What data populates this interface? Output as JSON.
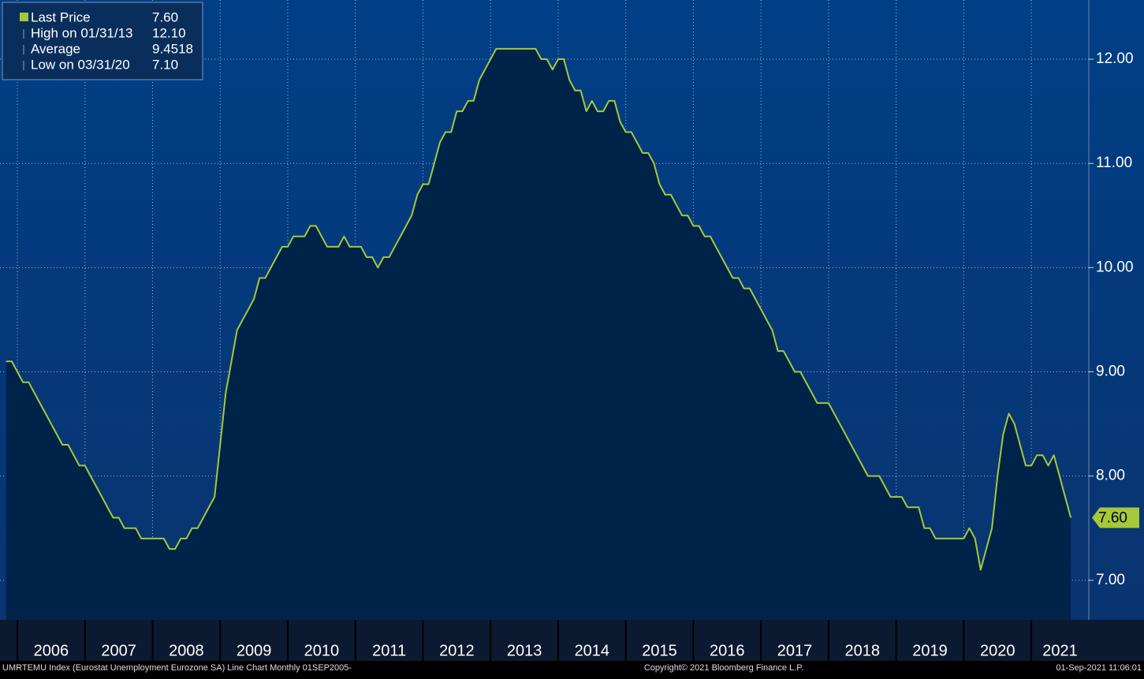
{
  "chart_data": {
    "type": "line",
    "footer_left": "UMRTEMU Index (Eurostat Unemployment Eurozone SA) Line Chart  Monthly 01SEP2005-",
    "footer_center": "Copyright© 2021 Bloomberg Finance L.P.",
    "footer_right": "01-Sep-2021 11:06:01",
    "series": [
      {
        "name": "Last Price",
        "color": "#a6c83a",
        "fill": "#00234a",
        "values": [
          9.1,
          9.1,
          9.0,
          8.9,
          8.9,
          8.8,
          8.7,
          8.6,
          8.5,
          8.4,
          8.3,
          8.3,
          8.2,
          8.1,
          8.1,
          8.0,
          7.9,
          7.8,
          7.7,
          7.6,
          7.6,
          7.5,
          7.5,
          7.5,
          7.4,
          7.4,
          7.4,
          7.4,
          7.4,
          7.3,
          7.3,
          7.4,
          7.4,
          7.5,
          7.5,
          7.6,
          7.7,
          7.8,
          8.3,
          8.8,
          9.1,
          9.4,
          9.5,
          9.6,
          9.7,
          9.9,
          9.9,
          10.0,
          10.1,
          10.2,
          10.2,
          10.3,
          10.3,
          10.3,
          10.4,
          10.4,
          10.3,
          10.2,
          10.2,
          10.2,
          10.3,
          10.2,
          10.2,
          10.2,
          10.1,
          10.1,
          10.0,
          10.1,
          10.1,
          10.2,
          10.3,
          10.4,
          10.5,
          10.7,
          10.8,
          10.8,
          11.0,
          11.2,
          11.3,
          11.3,
          11.5,
          11.5,
          11.6,
          11.6,
          11.8,
          11.9,
          12.0,
          12.1,
          12.1,
          12.1,
          12.1,
          12.1,
          12.1,
          12.1,
          12.1,
          12.0,
          12.0,
          11.9,
          12.0,
          12.0,
          11.8,
          11.7,
          11.7,
          11.5,
          11.6,
          11.5,
          11.5,
          11.6,
          11.6,
          11.4,
          11.3,
          11.3,
          11.2,
          11.1,
          11.1,
          11.0,
          10.8,
          10.7,
          10.7,
          10.6,
          10.5,
          10.5,
          10.4,
          10.4,
          10.3,
          10.3,
          10.2,
          10.1,
          10.0,
          9.9,
          9.9,
          9.8,
          9.8,
          9.7,
          9.6,
          9.5,
          9.4,
          9.2,
          9.2,
          9.1,
          9.0,
          9.0,
          8.9,
          8.8,
          8.7,
          8.7,
          8.7,
          8.6,
          8.5,
          8.4,
          8.3,
          8.2,
          8.1,
          8.0,
          8.0,
          8.0,
          7.9,
          7.8,
          7.8,
          7.8,
          7.7,
          7.7,
          7.7,
          7.5,
          7.5,
          7.4,
          7.4,
          7.4,
          7.4,
          7.4,
          7.4,
          7.5,
          7.4,
          7.1,
          7.3,
          7.5,
          8.0,
          8.4,
          8.6,
          8.5,
          8.3,
          8.1,
          8.1,
          8.2,
          8.2,
          8.1,
          8.2,
          8.0,
          7.8,
          7.6
        ]
      }
    ],
    "x": [
      2005.833,
      2005.917,
      2006.0,
      2006.083,
      2006.167,
      2006.25,
      2006.333,
      2006.417,
      2006.5,
      2006.583,
      2006.667,
      2006.75,
      2006.833,
      2006.917,
      2007.0,
      2007.083,
      2007.167,
      2007.25,
      2007.333,
      2007.417,
      2007.5,
      2007.583,
      2007.667,
      2007.75,
      2007.833,
      2007.917,
      2008.0,
      2008.083,
      2008.167,
      2008.25,
      2008.333,
      2008.417,
      2008.5,
      2008.583,
      2008.667,
      2008.75,
      2008.833,
      2008.917,
      2009.0,
      2009.083,
      2009.167,
      2009.25,
      2009.333,
      2009.417,
      2009.5,
      2009.583,
      2009.667,
      2009.75,
      2009.833,
      2009.917,
      2010.0,
      2010.083,
      2010.167,
      2010.25,
      2010.333,
      2010.417,
      2010.5,
      2010.583,
      2010.667,
      2010.75,
      2010.833,
      2010.917,
      2011.0,
      2011.083,
      2011.167,
      2011.25,
      2011.333,
      2011.417,
      2011.5,
      2011.583,
      2011.667,
      2011.75,
      2011.833,
      2011.917,
      2012.0,
      2012.083,
      2012.167,
      2012.25,
      2012.333,
      2012.417,
      2012.5,
      2012.583,
      2012.667,
      2012.75,
      2012.833,
      2012.917,
      2013.0,
      2013.083,
      2013.167,
      2013.25,
      2013.333,
      2013.417,
      2013.5,
      2013.583,
      2013.667,
      2013.75,
      2013.833,
      2013.917,
      2014.0,
      2014.083,
      2014.167,
      2014.25,
      2014.333,
      2014.417,
      2014.5,
      2014.583,
      2014.667,
      2014.75,
      2014.833,
      2014.917,
      2015.0,
      2015.083,
      2015.167,
      2015.25,
      2015.333,
      2015.417,
      2015.5,
      2015.583,
      2015.667,
      2015.75,
      2015.833,
      2015.917,
      2016.0,
      2016.083,
      2016.167,
      2016.25,
      2016.333,
      2016.417,
      2016.5,
      2016.583,
      2016.667,
      2016.75,
      2016.833,
      2016.917,
      2017.0,
      2017.083,
      2017.167,
      2017.25,
      2017.333,
      2017.417,
      2017.5,
      2017.583,
      2017.667,
      2017.75,
      2017.833,
      2017.917,
      2018.0,
      2018.083,
      2018.167,
      2018.25,
      2018.333,
      2018.417,
      2018.5,
      2018.583,
      2018.667,
      2018.75,
      2018.833,
      2018.917,
      2019.0,
      2019.083,
      2019.167,
      2019.25,
      2019.333,
      2019.417,
      2019.5,
      2019.583,
      2019.667,
      2019.75,
      2019.833,
      2019.917,
      2020.0,
      2020.083,
      2020.167,
      2020.25,
      2020.333,
      2020.417,
      2020.5,
      2020.583,
      2020.667,
      2020.75,
      2020.833,
      2020.917,
      2021.0,
      2021.083,
      2021.167,
      2021.25,
      2021.333,
      2021.417,
      2021.5,
      2021.583
    ],
    "last_value": {
      "value": 7.6,
      "label": "7.60"
    },
    "stats": [
      {
        "name": "High on 01/31/13",
        "value": {
          "value": 12.1,
          "label": "12.10"
        }
      },
      {
        "name": "Average",
        "value": 9.4518
      },
      {
        "name": "Low on 03/31/20",
        "value": {
          "value": 7.1,
          "label": "7.10"
        }
      }
    ],
    "xlim": [
      2005.743,
      2021.85
    ],
    "xticks": [
      2006,
      2007,
      2008,
      2009,
      2010,
      2011,
      2012,
      2013,
      2014,
      2015,
      2016,
      2017,
      2018,
      2019,
      2020,
      2021
    ],
    "ylim": [
      6.62,
      12.568
    ],
    "yticks": [
      {
        "value": 7,
        "label": "7.00"
      },
      {
        "value": 8,
        "label": "8.00"
      },
      {
        "value": 9,
        "label": "9.00"
      },
      {
        "value": 10,
        "label": "10.00"
      },
      {
        "value": 11,
        "label": "11.00"
      },
      {
        "value": 12,
        "label": "12.00"
      }
    ],
    "grid": true,
    "legend": "top-left"
  }
}
